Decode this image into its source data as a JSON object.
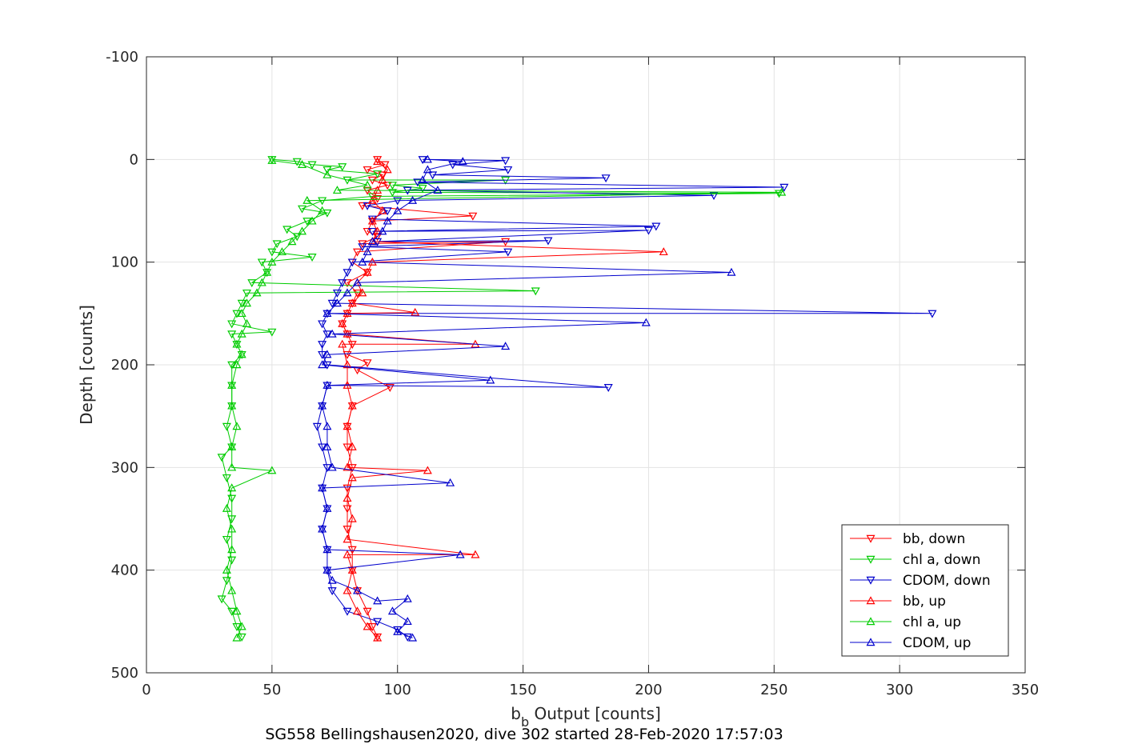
{
  "chart_data": {
    "type": "line",
    "title": "SG558 Bellingshausen2020, dive 302 started 28-Feb-2020 17:57:03",
    "xlabel_main": "b",
    "xlabel_sub": "b",
    "xlabel_rest": " Output [counts]",
    "ylabel": "Depth [counts]",
    "xlim": [
      0,
      350
    ],
    "ylim": [
      -100,
      500
    ],
    "y_reversed": true,
    "grid": true,
    "legend_position": "bottom-right",
    "xticks": [
      "0",
      "50",
      "100",
      "150",
      "200",
      "250",
      "300",
      "350"
    ],
    "yticks": [
      "-100",
      "0",
      "100",
      "200",
      "300",
      "400",
      "500"
    ],
    "series": [
      {
        "name": "bb, down",
        "color": "#ff0000",
        "marker": "triangle-down",
        "points": [
          [
            92,
            0
          ],
          [
            95,
            5
          ],
          [
            88,
            10
          ],
          [
            94,
            15
          ],
          [
            90,
            20
          ],
          [
            96,
            25
          ],
          [
            88,
            30
          ],
          [
            92,
            38
          ],
          [
            86,
            45
          ],
          [
            130,
            55
          ],
          [
            90,
            60
          ],
          [
            88,
            70
          ],
          [
            92,
            75
          ],
          [
            86,
            82
          ],
          [
            143,
            80
          ],
          [
            84,
            90
          ],
          [
            82,
            100
          ],
          [
            88,
            110
          ],
          [
            80,
            120
          ],
          [
            84,
            130
          ],
          [
            82,
            140
          ],
          [
            80,
            150
          ],
          [
            78,
            160
          ],
          [
            80,
            170
          ],
          [
            82,
            180
          ],
          [
            80,
            190
          ],
          [
            88,
            198
          ],
          [
            84,
            205
          ],
          [
            97,
            222
          ],
          [
            82,
            240
          ],
          [
            80,
            260
          ],
          [
            80,
            280
          ],
          [
            82,
            300
          ],
          [
            80,
            320
          ],
          [
            80,
            340
          ],
          [
            80,
            360
          ],
          [
            82,
            380
          ],
          [
            82,
            400
          ],
          [
            84,
            420
          ],
          [
            88,
            440
          ],
          [
            90,
            455
          ],
          [
            92,
            465
          ]
        ]
      },
      {
        "name": "chl a, down",
        "color": "#00cc00",
        "marker": "triangle-down",
        "points": [
          [
            50,
            0
          ],
          [
            60,
            2
          ],
          [
            66,
            5
          ],
          [
            78,
            7
          ],
          [
            72,
            10
          ],
          [
            92,
            14
          ],
          [
            80,
            20
          ],
          [
            143,
            20
          ],
          [
            98,
            25
          ],
          [
            110,
            28
          ],
          [
            98,
            32
          ],
          [
            252,
            33
          ],
          [
            90,
            36
          ],
          [
            70,
            40
          ],
          [
            62,
            48
          ],
          [
            72,
            52
          ],
          [
            64,
            60
          ],
          [
            56,
            68
          ],
          [
            60,
            75
          ],
          [
            52,
            82
          ],
          [
            50,
            90
          ],
          [
            66,
            95
          ],
          [
            46,
            100
          ],
          [
            48,
            110
          ],
          [
            42,
            120
          ],
          [
            155,
            128
          ],
          [
            40,
            130
          ],
          [
            38,
            140
          ],
          [
            36,
            150
          ],
          [
            34,
            160
          ],
          [
            50,
            168
          ],
          [
            34,
            170
          ],
          [
            36,
            180
          ],
          [
            38,
            190
          ],
          [
            34,
            200
          ],
          [
            34,
            220
          ],
          [
            34,
            240
          ],
          [
            32,
            260
          ],
          [
            34,
            280
          ],
          [
            30,
            290
          ],
          [
            32,
            310
          ],
          [
            34,
            330
          ],
          [
            34,
            350
          ],
          [
            32,
            370
          ],
          [
            34,
            390
          ],
          [
            32,
            410
          ],
          [
            30,
            428
          ],
          [
            34,
            440
          ],
          [
            36,
            455
          ],
          [
            38,
            465
          ]
        ]
      },
      {
        "name": "CDOM, down",
        "color": "#0000cc",
        "marker": "triangle-down",
        "points": [
          [
            110,
            0
          ],
          [
            143,
            1
          ],
          [
            122,
            5
          ],
          [
            144,
            10
          ],
          [
            114,
            15
          ],
          [
            183,
            18
          ],
          [
            108,
            22
          ],
          [
            254,
            27
          ],
          [
            104,
            30
          ],
          [
            226,
            35
          ],
          [
            100,
            40
          ],
          [
            88,
            45
          ],
          [
            96,
            50
          ],
          [
            90,
            58
          ],
          [
            203,
            65
          ],
          [
            90,
            70
          ],
          [
            200,
            69
          ],
          [
            92,
            80
          ],
          [
            160,
            79
          ],
          [
            86,
            85
          ],
          [
            144,
            90
          ],
          [
            82,
            100
          ],
          [
            80,
            110
          ],
          [
            78,
            120
          ],
          [
            76,
            130
          ],
          [
            74,
            140
          ],
          [
            313,
            150
          ],
          [
            72,
            150
          ],
          [
            70,
            160
          ],
          [
            72,
            170
          ],
          [
            70,
            180
          ],
          [
            70,
            190
          ],
          [
            72,
            200
          ],
          [
            184,
            222
          ],
          [
            72,
            220
          ],
          [
            70,
            240
          ],
          [
            68,
            260
          ],
          [
            70,
            280
          ],
          [
            72,
            300
          ],
          [
            70,
            320
          ],
          [
            72,
            340
          ],
          [
            70,
            360
          ],
          [
            72,
            380
          ],
          [
            72,
            400
          ],
          [
            74,
            420
          ],
          [
            80,
            440
          ],
          [
            92,
            450
          ],
          [
            100,
            458
          ],
          [
            104,
            465
          ]
        ]
      },
      {
        "name": "bb, up",
        "color": "#ff0000",
        "marker": "triangle-up",
        "points": [
          [
            92,
            466
          ],
          [
            88,
            455
          ],
          [
            84,
            440
          ],
          [
            80,
            420
          ],
          [
            82,
            400
          ],
          [
            80,
            385
          ],
          [
            131,
            385
          ],
          [
            80,
            370
          ],
          [
            82,
            350
          ],
          [
            80,
            330
          ],
          [
            82,
            310
          ],
          [
            112,
            303
          ],
          [
            80,
            300
          ],
          [
            82,
            280
          ],
          [
            80,
            260
          ],
          [
            82,
            240
          ],
          [
            80,
            220
          ],
          [
            80,
            200
          ],
          [
            78,
            180
          ],
          [
            131,
            180
          ],
          [
            80,
            170
          ],
          [
            78,
            160
          ],
          [
            80,
            150
          ],
          [
            107,
            149
          ],
          [
            82,
            140
          ],
          [
            86,
            130
          ],
          [
            84,
            120
          ],
          [
            88,
            110
          ],
          [
            90,
            100
          ],
          [
            206,
            90
          ],
          [
            90,
            80
          ],
          [
            92,
            70
          ],
          [
            90,
            60
          ],
          [
            94,
            50
          ],
          [
            90,
            40
          ],
          [
            92,
            30
          ],
          [
            94,
            20
          ],
          [
            96,
            10
          ],
          [
            92,
            2
          ]
        ]
      },
      {
        "name": "chl a, up",
        "color": "#00cc00",
        "marker": "triangle-up",
        "points": [
          [
            36,
            466
          ],
          [
            38,
            455
          ],
          [
            36,
            440
          ],
          [
            34,
            420
          ],
          [
            32,
            400
          ],
          [
            34,
            380
          ],
          [
            34,
            360
          ],
          [
            32,
            340
          ],
          [
            34,
            320
          ],
          [
            50,
            303
          ],
          [
            34,
            300
          ],
          [
            34,
            280
          ],
          [
            36,
            260
          ],
          [
            34,
            240
          ],
          [
            34,
            220
          ],
          [
            36,
            200
          ],
          [
            38,
            190
          ],
          [
            36,
            180
          ],
          [
            38,
            170
          ],
          [
            40,
            160
          ],
          [
            38,
            150
          ],
          [
            40,
            140
          ],
          [
            44,
            130
          ],
          [
            46,
            120
          ],
          [
            48,
            110
          ],
          [
            50,
            100
          ],
          [
            54,
            90
          ],
          [
            58,
            80
          ],
          [
            62,
            70
          ],
          [
            66,
            60
          ],
          [
            70,
            50
          ],
          [
            64,
            40
          ],
          [
            253,
            32
          ],
          [
            76,
            30
          ],
          [
            88,
            25
          ],
          [
            72,
            15
          ],
          [
            62,
            5
          ],
          [
            50,
            1
          ]
        ]
      },
      {
        "name": "CDOM, up",
        "color": "#0000cc",
        "marker": "triangle-up",
        "points": [
          [
            106,
            466
          ],
          [
            100,
            460
          ],
          [
            104,
            450
          ],
          [
            98,
            440
          ],
          [
            104,
            428
          ],
          [
            92,
            430
          ],
          [
            84,
            420
          ],
          [
            74,
            410
          ],
          [
            72,
            400
          ],
          [
            125,
            385
          ],
          [
            72,
            380
          ],
          [
            70,
            360
          ],
          [
            72,
            340
          ],
          [
            70,
            320
          ],
          [
            121,
            315
          ],
          [
            74,
            300
          ],
          [
            72,
            280
          ],
          [
            72,
            260
          ],
          [
            70,
            240
          ],
          [
            72,
            220
          ],
          [
            137,
            215
          ],
          [
            70,
            200
          ],
          [
            72,
            190
          ],
          [
            143,
            182
          ],
          [
            74,
            170
          ],
          [
            199,
            159
          ],
          [
            72,
            150
          ],
          [
            76,
            140
          ],
          [
            80,
            130
          ],
          [
            84,
            120
          ],
          [
            233,
            110
          ],
          [
            86,
            100
          ],
          [
            88,
            90
          ],
          [
            90,
            80
          ],
          [
            94,
            70
          ],
          [
            96,
            60
          ],
          [
            100,
            50
          ],
          [
            106,
            40
          ],
          [
            116,
            30
          ],
          [
            110,
            20
          ],
          [
            112,
            10
          ],
          [
            126,
            2
          ],
          [
            112,
            0
          ]
        ]
      }
    ]
  }
}
